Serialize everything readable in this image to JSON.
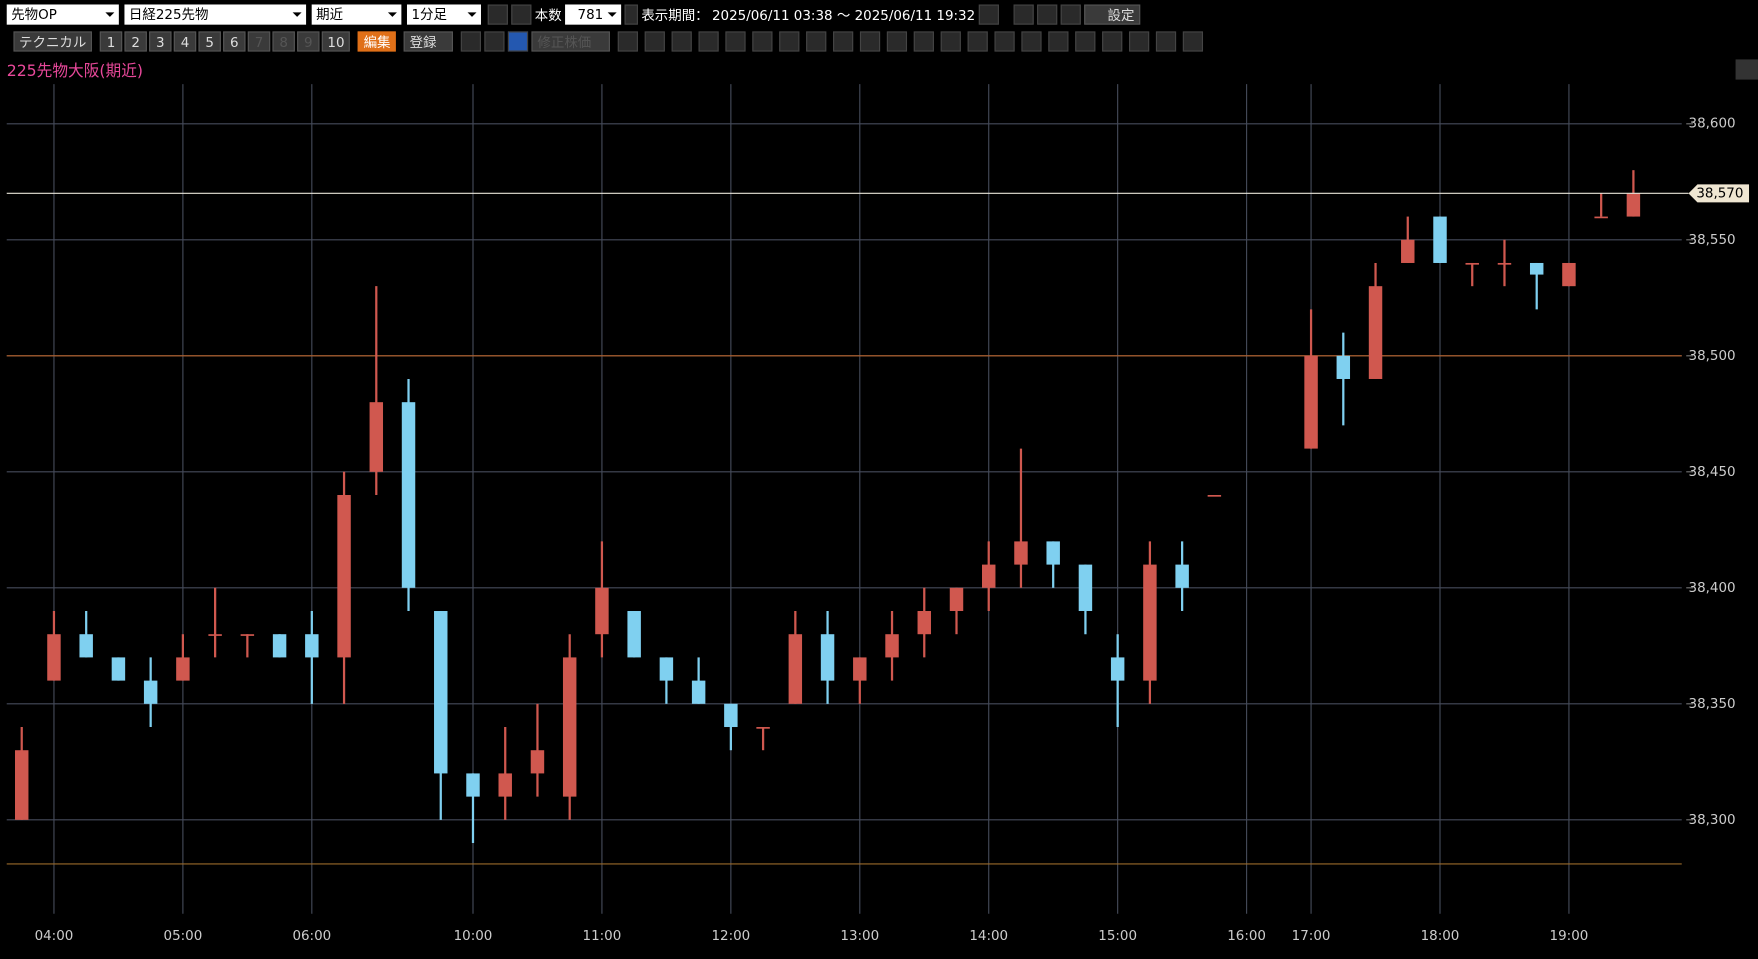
{
  "toolbar": {
    "market": "先物OP",
    "symbol": "日経225先物",
    "contract": "期近",
    "interval": "1分足",
    "bars_label": "本数",
    "bars": "781",
    "period_label": "表示期間：",
    "period": "2025/06/11 03:38 ～ 2025/06/11 19:32",
    "settings": "設定",
    "technical": "テクニカル",
    "presets": [
      "1",
      "2",
      "3",
      "4",
      "5",
      "6",
      "7",
      "8",
      "9",
      "10"
    ],
    "edit": "編集",
    "register": "登録",
    "adjusted": "修正株価"
  },
  "chart_data": {
    "type": "candlestick",
    "title": "225先物大阪(期近)",
    "categories": [
      null,
      "04:00",
      null,
      null,
      null,
      "05:00",
      null,
      null,
      null,
      "06:00",
      null,
      null,
      null,
      null,
      "10:00",
      null,
      null,
      null,
      "11:00",
      null,
      null,
      null,
      "12:00",
      null,
      null,
      null,
      "13:00",
      null,
      null,
      null,
      "14:00",
      null,
      null,
      null,
      "15:00",
      null,
      null,
      null,
      "16:00",
      null,
      "17:00",
      null,
      null,
      null,
      "18:00",
      null,
      null,
      null,
      "19:00",
      null,
      null
    ],
    "open": [
      38300,
      38360,
      38380,
      38370,
      38360,
      38360,
      38380,
      38380,
      38380,
      38380,
      38370,
      38450,
      38480,
      38390,
      38320,
      38310,
      38320,
      38310,
      38380,
      38390,
      38370,
      38360,
      38350,
      38340,
      38350,
      38380,
      38360,
      38370,
      38380,
      38390,
      38400,
      38410,
      38420,
      38410,
      38370,
      38360,
      38410,
      38440,
      null,
      null,
      38460,
      38500,
      38490,
      38540,
      38560,
      38540,
      38540,
      38540,
      38530,
      38560,
      38560
    ],
    "high": [
      38340,
      38390,
      38390,
      38370,
      38370,
      38380,
      38400,
      38380,
      38380,
      38390,
      38450,
      38530,
      38490,
      38390,
      38320,
      38340,
      38350,
      38380,
      38420,
      38390,
      38370,
      38370,
      38350,
      38340,
      38390,
      38390,
      38370,
      38390,
      38400,
      38400,
      38420,
      38460,
      38420,
      38410,
      38380,
      38420,
      38420,
      38440,
      null,
      null,
      38520,
      38510,
      38540,
      38560,
      38560,
      38540,
      38550,
      38540,
      38540,
      38570,
      38580
    ],
    "low": [
      38300,
      38360,
      38370,
      38360,
      38340,
      38360,
      38370,
      38370,
      38370,
      38350,
      38350,
      38440,
      38390,
      38300,
      38290,
      38300,
      38310,
      38300,
      38370,
      38370,
      38350,
      38350,
      38330,
      38330,
      38350,
      38350,
      38350,
      38360,
      38370,
      38380,
      38390,
      38400,
      38400,
      38380,
      38340,
      38350,
      38390,
      38440,
      null,
      null,
      38460,
      38470,
      38490,
      38540,
      38540,
      38530,
      38530,
      38520,
      38530,
      38560,
      38560
    ],
    "close": [
      38330,
      38380,
      38370,
      38360,
      38350,
      38370,
      38380,
      38380,
      38370,
      38370,
      38440,
      38480,
      38400,
      38320,
      38310,
      38320,
      38330,
      38370,
      38400,
      38370,
      38360,
      38350,
      38340,
      38340,
      38380,
      38360,
      38370,
      38380,
      38390,
      38400,
      38410,
      38420,
      38410,
      38390,
      38360,
      38410,
      38400,
      38440,
      null,
      null,
      38500,
      38490,
      38530,
      38550,
      38540,
      38540,
      38540,
      38535,
      38540,
      38560,
      38570
    ],
    "up_color": "#d0584f",
    "down_color": "#7fd0f0",
    "ylim": [
      38260,
      38620
    ],
    "yticks": [
      {
        "value": 38300,
        "label": "38,300"
      },
      {
        "value": 38350,
        "label": "38,350"
      },
      {
        "value": 38400,
        "label": "38,400"
      },
      {
        "value": 38450,
        "label": "38,450"
      },
      {
        "value": 38500,
        "label": "38,500"
      },
      {
        "value": 38550,
        "label": "38,550"
      },
      {
        "value": 38600,
        "label": "38,600"
      }
    ],
    "grid": true,
    "reference_lines": [
      {
        "value": 38500,
        "color": "#b8622a"
      },
      {
        "value": 38281,
        "color": "#9a6a2a"
      }
    ],
    "current_price": {
      "value": 38570,
      "label": "38,570"
    }
  }
}
